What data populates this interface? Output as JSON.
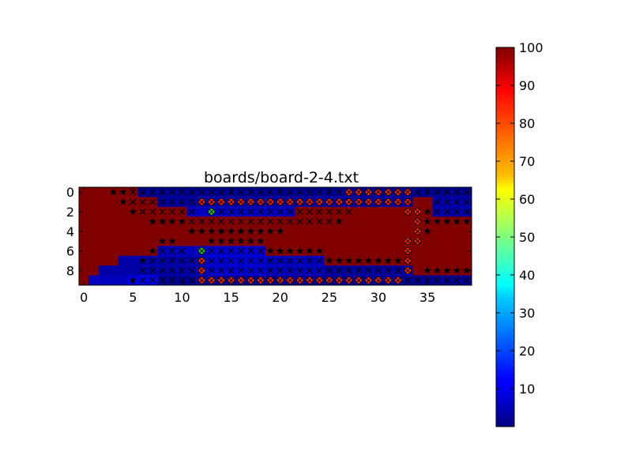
{
  "chart_data": {
    "type": "heatmap",
    "title": "boards/board-2-4.txt",
    "xlabel": "",
    "ylabel": "",
    "x_ticks": [
      "0",
      "5",
      "10",
      "15",
      "20",
      "25",
      "30",
      "35"
    ],
    "y_ticks": [
      "0",
      "2",
      "4",
      "6",
      "8"
    ],
    "xlim": [
      -0.5,
      39.5
    ],
    "ylim": [
      9.5,
      -0.5
    ],
    "colormap": "jet",
    "colorbar": {
      "vmin": 0,
      "vmax": 100,
      "ticks": [
        "10",
        "20",
        "30",
        "40",
        "50",
        "60",
        "70",
        "80",
        "90",
        "100"
      ]
    },
    "grid": false,
    "values_note_legend": {
      "high": 100,
      "low_values": [
        1,
        2,
        3,
        4,
        6,
        8,
        10
      ]
    },
    "grid_values": [
      [
        100,
        100,
        100,
        100,
        100,
        100,
        2,
        2,
        2,
        2,
        2,
        2,
        2,
        2,
        2,
        2,
        2,
        2,
        2,
        2,
        2,
        2,
        2,
        2,
        2,
        2,
        2,
        2,
        2,
        2,
        2,
        2,
        2,
        2,
        2,
        2,
        2,
        2,
        2,
        2
      ],
      [
        100,
        100,
        100,
        100,
        100,
        100,
        100,
        100,
        3,
        3,
        3,
        3,
        3,
        3,
        3,
        3,
        3,
        3,
        3,
        3,
        3,
        3,
        3,
        3,
        3,
        3,
        3,
        3,
        3,
        3,
        3,
        3,
        3,
        3,
        100,
        100,
        4,
        4,
        4,
        4
      ],
      [
        100,
        100,
        100,
        100,
        100,
        100,
        100,
        100,
        100,
        100,
        100,
        6,
        6,
        6,
        6,
        6,
        6,
        6,
        6,
        6,
        6,
        6,
        100,
        100,
        100,
        100,
        100,
        100,
        100,
        100,
        100,
        100,
        100,
        100,
        100,
        100,
        4,
        4,
        4,
        4
      ],
      [
        100,
        100,
        100,
        100,
        100,
        100,
        100,
        100,
        100,
        100,
        100,
        100,
        100,
        100,
        100,
        100,
        100,
        100,
        100,
        100,
        100,
        100,
        100,
        100,
        100,
        100,
        100,
        100,
        100,
        100,
        100,
        100,
        100,
        100,
        100,
        100,
        100,
        100,
        100,
        100
      ],
      [
        100,
        100,
        100,
        100,
        100,
        100,
        100,
        100,
        100,
        100,
        100,
        100,
        100,
        100,
        100,
        100,
        100,
        100,
        100,
        100,
        100,
        100,
        100,
        100,
        100,
        100,
        100,
        100,
        100,
        100,
        100,
        100,
        100,
        100,
        100,
        100,
        100,
        100,
        100,
        100
      ],
      [
        100,
        100,
        100,
        100,
        100,
        100,
        100,
        100,
        100,
        100,
        100,
        100,
        100,
        100,
        100,
        100,
        100,
        100,
        100,
        100,
        100,
        100,
        100,
        100,
        100,
        100,
        100,
        100,
        100,
        100,
        100,
        100,
        100,
        100,
        100,
        100,
        100,
        100,
        100,
        100
      ],
      [
        100,
        100,
        100,
        100,
        100,
        100,
        100,
        100,
        6,
        6,
        6,
        6,
        6,
        8,
        8,
        8,
        8,
        8,
        8,
        100,
        100,
        100,
        100,
        100,
        100,
        100,
        100,
        100,
        100,
        100,
        100,
        100,
        100,
        100,
        100,
        100,
        100,
        100,
        100,
        100
      ],
      [
        100,
        100,
        100,
        100,
        4,
        4,
        4,
        4,
        4,
        4,
        4,
        4,
        4,
        8,
        8,
        8,
        8,
        8,
        8,
        6,
        6,
        6,
        6,
        6,
        6,
        100,
        100,
        100,
        100,
        100,
        100,
        100,
        100,
        100,
        100,
        100,
        100,
        100,
        100,
        100
      ],
      [
        100,
        100,
        4,
        4,
        4,
        4,
        4,
        4,
        4,
        4,
        4,
        4,
        4,
        8,
        8,
        8,
        8,
        8,
        8,
        6,
        6,
        6,
        6,
        6,
        6,
        3,
        3,
        3,
        3,
        3,
        3,
        3,
        3,
        3,
        100,
        100,
        100,
        100,
        100,
        100
      ],
      [
        100,
        6,
        6,
        6,
        6,
        10,
        10,
        10,
        2,
        2,
        2,
        2,
        2,
        2,
        2,
        2,
        2,
        2,
        2,
        2,
        2,
        2,
        2,
        2,
        2,
        2,
        2,
        2,
        2,
        2,
        2,
        2,
        2,
        2,
        2,
        2,
        2,
        2,
        2,
        2
      ]
    ],
    "markers": {
      "stars": [
        [
          0,
          3
        ],
        [
          0,
          4
        ],
        [
          1,
          4
        ],
        [
          2,
          5
        ],
        [
          2,
          34
        ],
        [
          2,
          35
        ],
        [
          3,
          7
        ],
        [
          3,
          8
        ],
        [
          3,
          9
        ],
        [
          3,
          10
        ],
        [
          3,
          26
        ],
        [
          3,
          34
        ],
        [
          3,
          35
        ],
        [
          3,
          36
        ],
        [
          3,
          37
        ],
        [
          3,
          38
        ],
        [
          3,
          39
        ],
        [
          4,
          11
        ],
        [
          4,
          12
        ],
        [
          4,
          13
        ],
        [
          4,
          14
        ],
        [
          4,
          15
        ],
        [
          4,
          16
        ],
        [
          4,
          17
        ],
        [
          4,
          18
        ],
        [
          4,
          19
        ],
        [
          4,
          20
        ],
        [
          4,
          34
        ],
        [
          4,
          35
        ],
        [
          5,
          8
        ],
        [
          5,
          9
        ],
        [
          5,
          13
        ],
        [
          5,
          14
        ],
        [
          5,
          15
        ],
        [
          5,
          16
        ],
        [
          5,
          17
        ],
        [
          5,
          18
        ],
        [
          5,
          33
        ],
        [
          6,
          7
        ],
        [
          6,
          19
        ],
        [
          6,
          20
        ],
        [
          6,
          21
        ],
        [
          6,
          22
        ],
        [
          6,
          23
        ],
        [
          6,
          24
        ],
        [
          6,
          33
        ],
        [
          7,
          6
        ],
        [
          7,
          25
        ],
        [
          7,
          26
        ],
        [
          7,
          27
        ],
        [
          7,
          28
        ],
        [
          7,
          29
        ],
        [
          7,
          30
        ],
        [
          7,
          31
        ],
        [
          7,
          32
        ],
        [
          8,
          35
        ],
        [
          8,
          36
        ],
        [
          8,
          37
        ],
        [
          8,
          38
        ],
        [
          8,
          39
        ],
        [
          9,
          5
        ]
      ],
      "crosses": [
        [
          0,
          5
        ],
        [
          0,
          6
        ],
        [
          0,
          7
        ],
        [
          0,
          8
        ],
        [
          0,
          9
        ],
        [
          0,
          10
        ],
        [
          0,
          11
        ],
        [
          0,
          12
        ],
        [
          0,
          13
        ],
        [
          0,
          14
        ],
        [
          0,
          15
        ],
        [
          0,
          16
        ],
        [
          0,
          17
        ],
        [
          0,
          18
        ],
        [
          0,
          19
        ],
        [
          0,
          20
        ],
        [
          0,
          21
        ],
        [
          0,
          22
        ],
        [
          0,
          23
        ],
        [
          0,
          24
        ],
        [
          0,
          25
        ],
        [
          0,
          26
        ],
        [
          0,
          34
        ],
        [
          0,
          35
        ],
        [
          0,
          36
        ],
        [
          0,
          37
        ],
        [
          0,
          38
        ],
        [
          0,
          39
        ],
        [
          1,
          5
        ],
        [
          1,
          6
        ],
        [
          1,
          7
        ],
        [
          1,
          8
        ],
        [
          1,
          9
        ],
        [
          1,
          10
        ],
        [
          1,
          11
        ],
        [
          1,
          36
        ],
        [
          1,
          37
        ],
        [
          1,
          38
        ],
        [
          1,
          39
        ],
        [
          2,
          6
        ],
        [
          2,
          7
        ],
        [
          2,
          8
        ],
        [
          2,
          9
        ],
        [
          2,
          10
        ],
        [
          2,
          11
        ],
        [
          2,
          14
        ],
        [
          2,
          15
        ],
        [
          2,
          16
        ],
        [
          2,
          17
        ],
        [
          2,
          18
        ],
        [
          2,
          19
        ],
        [
          2,
          20
        ],
        [
          2,
          21
        ],
        [
          2,
          22
        ],
        [
          2,
          23
        ],
        [
          2,
          24
        ],
        [
          2,
          25
        ],
        [
          2,
          26
        ],
        [
          2,
          27
        ],
        [
          2,
          36
        ],
        [
          2,
          37
        ],
        [
          2,
          38
        ],
        [
          2,
          39
        ],
        [
          3,
          11
        ],
        [
          3,
          12
        ],
        [
          3,
          13
        ],
        [
          3,
          14
        ],
        [
          3,
          15
        ],
        [
          3,
          16
        ],
        [
          3,
          17
        ],
        [
          3,
          18
        ],
        [
          3,
          19
        ],
        [
          3,
          20
        ],
        [
          3,
          21
        ],
        [
          3,
          22
        ],
        [
          3,
          23
        ],
        [
          3,
          24
        ],
        [
          3,
          25
        ],
        [
          6,
          8
        ],
        [
          6,
          9
        ],
        [
          6,
          10
        ],
        [
          6,
          13
        ],
        [
          6,
          14
        ],
        [
          6,
          15
        ],
        [
          6,
          16
        ],
        [
          6,
          17
        ],
        [
          6,
          18
        ],
        [
          7,
          7
        ],
        [
          7,
          8
        ],
        [
          7,
          9
        ],
        [
          7,
          10
        ],
        [
          7,
          11
        ],
        [
          7,
          13
        ],
        [
          7,
          14
        ],
        [
          7,
          15
        ],
        [
          7,
          16
        ],
        [
          7,
          17
        ],
        [
          7,
          18
        ],
        [
          7,
          19
        ],
        [
          7,
          20
        ],
        [
          7,
          21
        ],
        [
          7,
          22
        ],
        [
          7,
          23
        ],
        [
          7,
          24
        ],
        [
          8,
          6
        ],
        [
          8,
          7
        ],
        [
          8,
          8
        ],
        [
          8,
          9
        ],
        [
          8,
          10
        ],
        [
          8,
          11
        ],
        [
          8,
          13
        ],
        [
          8,
          14
        ],
        [
          8,
          15
        ],
        [
          8,
          16
        ],
        [
          8,
          17
        ],
        [
          8,
          18
        ],
        [
          8,
          19
        ],
        [
          8,
          20
        ],
        [
          8,
          21
        ],
        [
          8,
          22
        ],
        [
          8,
          23
        ],
        [
          8,
          24
        ],
        [
          8,
          25
        ],
        [
          8,
          26
        ],
        [
          8,
          27
        ],
        [
          8,
          28
        ],
        [
          8,
          29
        ],
        [
          8,
          30
        ],
        [
          8,
          31
        ],
        [
          8,
          32
        ],
        [
          9,
          6
        ],
        [
          9,
          7
        ],
        [
          9,
          8
        ],
        [
          9,
          9
        ],
        [
          9,
          10
        ],
        [
          9,
          11
        ],
        [
          9,
          33
        ],
        [
          9,
          34
        ],
        [
          9,
          35
        ],
        [
          9,
          36
        ],
        [
          9,
          37
        ],
        [
          9,
          38
        ],
        [
          9,
          39
        ]
      ],
      "red_path": [
        [
          0,
          27
        ],
        [
          0,
          28
        ],
        [
          0,
          29
        ],
        [
          0,
          30
        ],
        [
          0,
          31
        ],
        [
          0,
          32
        ],
        [
          0,
          33
        ],
        [
          1,
          12
        ],
        [
          1,
          13
        ],
        [
          1,
          14
        ],
        [
          1,
          15
        ],
        [
          1,
          16
        ],
        [
          1,
          17
        ],
        [
          1,
          18
        ],
        [
          1,
          19
        ],
        [
          1,
          20
        ],
        [
          1,
          21
        ],
        [
          1,
          22
        ],
        [
          1,
          23
        ],
        [
          1,
          24
        ],
        [
          1,
          25
        ],
        [
          1,
          26
        ],
        [
          1,
          27
        ],
        [
          1,
          28
        ],
        [
          1,
          29
        ],
        [
          1,
          30
        ],
        [
          1,
          31
        ],
        [
          1,
          32
        ],
        [
          1,
          33
        ],
        [
          2,
          33
        ],
        [
          2,
          34
        ],
        [
          3,
          34
        ],
        [
          4,
          34
        ],
        [
          5,
          33
        ],
        [
          5,
          34
        ],
        [
          6,
          12
        ],
        [
          6,
          33
        ],
        [
          7,
          12
        ],
        [
          7,
          33
        ],
        [
          8,
          12
        ],
        [
          8,
          33
        ],
        [
          9,
          12
        ],
        [
          9,
          13
        ],
        [
          9,
          14
        ],
        [
          9,
          15
        ],
        [
          9,
          16
        ],
        [
          9,
          17
        ],
        [
          9,
          18
        ],
        [
          9,
          19
        ],
        [
          9,
          20
        ],
        [
          9,
          21
        ],
        [
          9,
          22
        ],
        [
          9,
          23
        ],
        [
          9,
          24
        ],
        [
          9,
          25
        ],
        [
          9,
          26
        ],
        [
          9,
          27
        ],
        [
          9,
          28
        ],
        [
          9,
          29
        ],
        [
          9,
          30
        ],
        [
          9,
          31
        ],
        [
          9,
          32
        ]
      ],
      "green": [
        [
          2,
          13
        ],
        [
          6,
          12
        ]
      ]
    }
  }
}
